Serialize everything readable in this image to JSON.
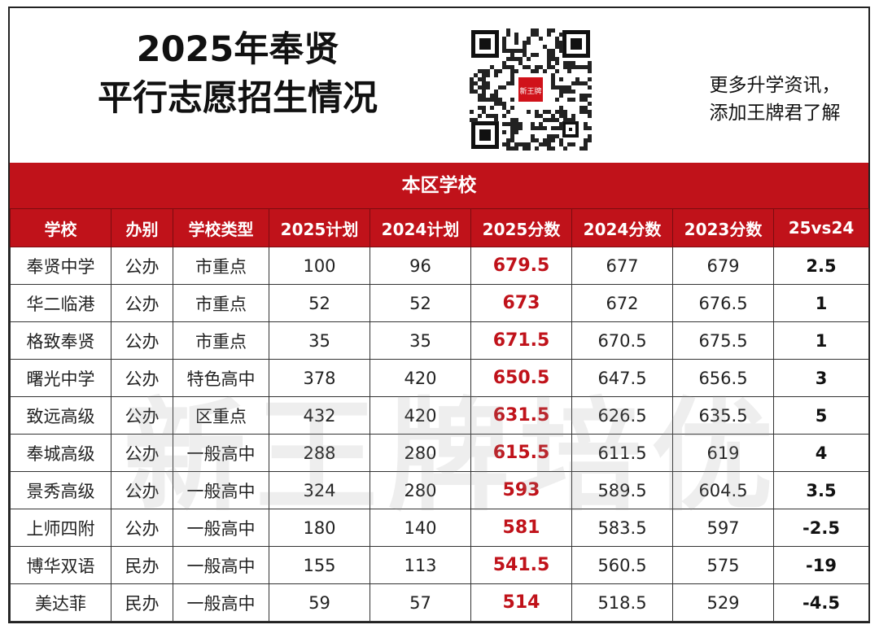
{
  "header": {
    "title_line1": "2025年奉贤",
    "title_line2": "平行志愿招生情况",
    "promo_line1": "更多升学资讯，",
    "promo_line2": "添加王牌君了解",
    "qr_logo_text": "新王牌"
  },
  "section_title": "本区学校",
  "columns": [
    "学校",
    "办别",
    "学校类型",
    "2025计划",
    "2024计划",
    "2025分数",
    "2024分数",
    "2023分数",
    "25vs24"
  ],
  "rows": [
    [
      "奉贤中学",
      "公办",
      "市重点",
      "100",
      "96",
      "679.5",
      "677",
      "679",
      "2.5"
    ],
    [
      "华二临港",
      "公办",
      "市重点",
      "52",
      "52",
      "673",
      "672",
      "676.5",
      "1"
    ],
    [
      "格致奉贤",
      "公办",
      "市重点",
      "35",
      "35",
      "671.5",
      "670.5",
      "675.5",
      "1"
    ],
    [
      "曙光中学",
      "公办",
      "特色高中",
      "378",
      "420",
      "650.5",
      "647.5",
      "656.5",
      "3"
    ],
    [
      "致远高级",
      "公办",
      "区重点",
      "432",
      "420",
      "631.5",
      "626.5",
      "635.5",
      "5"
    ],
    [
      "奉城高级",
      "公办",
      "一般高中",
      "288",
      "280",
      "615.5",
      "611.5",
      "619",
      "4"
    ],
    [
      "景秀高级",
      "公办",
      "一般高中",
      "324",
      "280",
      "593",
      "589.5",
      "604.5",
      "3.5"
    ],
    [
      "上师四附",
      "公办",
      "一般高中",
      "180",
      "140",
      "581",
      "583.5",
      "597",
      "-2.5"
    ],
    [
      "博华双语",
      "民办",
      "一般高中",
      "155",
      "113",
      "541.5",
      "560.5",
      "575",
      "-19"
    ],
    [
      "美达菲",
      "民办",
      "一般高中",
      "59",
      "57",
      "514",
      "518.5",
      "529",
      "-4.5"
    ]
  ],
  "watermark": "新王牌培优",
  "colors": {
    "accent_red": "#c0121a"
  }
}
